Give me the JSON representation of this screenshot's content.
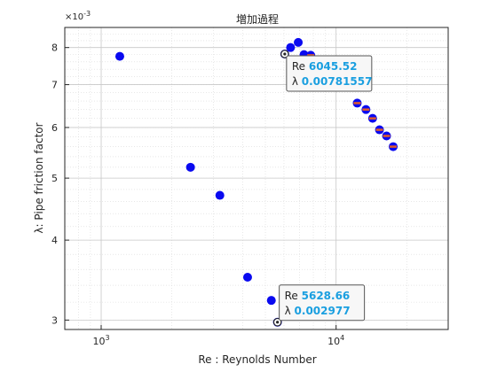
{
  "chart_data": {
    "type": "scatter",
    "title": "増加過程",
    "xlabel": "Re : Reynolds Number",
    "ylabel": "λ: Pipe friction factor",
    "xscale": "log",
    "yscale": "log",
    "xlim": [
      700,
      30000
    ],
    "ylim": [
      0.0029,
      0.0086
    ],
    "x_ticks": [
      1000,
      10000
    ],
    "x_tick_labels": [
      "10^3",
      "10^4"
    ],
    "y_ticks": [
      0.003,
      0.004,
      0.005,
      0.006,
      0.007,
      0.008
    ],
    "y_tick_labels": [
      "3",
      "4",
      "5",
      "6",
      "7",
      "8"
    ],
    "y_exponent_label": "×10^-3",
    "grid": true,
    "minor_grid": true,
    "colors": {
      "marker": "#0a0af0",
      "marker_overlay": "#e05a2b",
      "axis": "#262626",
      "grid": "#d9d9d9",
      "tooltip_value": "#1a9fe0"
    },
    "series": [
      {
        "marker": "filled-circle",
        "color": "#0a0af0",
        "x": [
          1200,
          2400,
          3200,
          4200,
          5300,
          5628.66,
          6045.52,
          6400,
          6900,
          7300,
          7800,
          12300,
          13400,
          14300,
          15300,
          16400,
          17500
        ],
        "y": [
          0.00775,
          0.0052,
          0.0047,
          0.0035,
          0.00322,
          0.002977,
          0.00781557,
          0.008,
          0.00815,
          0.0078,
          0.00778,
          0.00655,
          0.0064,
          0.0062,
          0.00595,
          0.00582,
          0.0056
        ]
      },
      {
        "marker": "overlay-dash",
        "color": "#e05a2b",
        "x": [
          7800,
          12300,
          13400,
          14300,
          15300,
          16400,
          17500
        ],
        "y": [
          0.00778,
          0.00655,
          0.0064,
          0.0062,
          0.00595,
          0.00582,
          0.0056
        ]
      }
    ],
    "annotations": [
      {
        "x": 6045.52,
        "y": 0.00781557,
        "label1": "Re",
        "value1": "6045.52",
        "label2": "λ",
        "value2": "0.00781557"
      },
      {
        "x": 5628.66,
        "y": 0.002977,
        "label1": "Re",
        "value1": "5628.66",
        "label2": "λ",
        "value2": "0.002977"
      }
    ]
  }
}
